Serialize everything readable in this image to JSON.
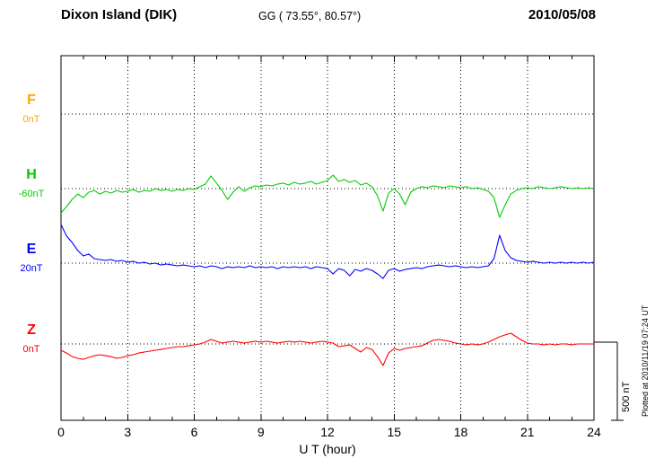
{
  "header": {
    "station": "Dixon Island (DIK)",
    "coords": "GG ( 73.55°,  80.57°)",
    "date": "2010/05/08"
  },
  "components": [
    {
      "letter": "F",
      "unit": "0nT",
      "color": "#ffa500"
    },
    {
      "letter": "H",
      "unit": "-60nT",
      "color": "#00cc00"
    },
    {
      "letter": "E",
      "unit": "20nT",
      "color": "#0000ff"
    },
    {
      "letter": "Z",
      "unit": "0nT",
      "color": "#ff0000"
    }
  ],
  "right_annotations": {
    "scale_label": "500 nT",
    "plotted_at": "Plotted at 2010/11/19 07:24 UT"
  },
  "chart_data": {
    "type": "line",
    "title": "Dixon Island (DIK) magnetogram 2010/05/08",
    "xlabel": "U T (hour)",
    "x_range": [
      0,
      24
    ],
    "x_ticks": [
      0,
      3,
      6,
      9,
      12,
      15,
      18,
      21,
      24
    ],
    "x_start_hours": 0,
    "x_step_hours": 0.25,
    "scale_bar_nT": 500,
    "grid": "dotted",
    "series": [
      {
        "id": "F",
        "label": "F",
        "reference_label": "0nT",
        "reference_nT": 0,
        "color": "#ffa500",
        "offsets_from_reference_nT": []
      },
      {
        "id": "H",
        "label": "H",
        "reference_label": "-60nT",
        "reference_nT": -60,
        "color": "#00cc00",
        "offsets_from_reference_nT": [
          -155,
          -115,
          -69,
          -35,
          -58,
          -23,
          -12,
          -35,
          -17,
          -29,
          -12,
          -23,
          -17,
          -6,
          -23,
          -12,
          -17,
          0,
          -12,
          -6,
          -17,
          -6,
          -12,
          0,
          -6,
          12,
          29,
          81,
          35,
          -12,
          -69,
          -23,
          12,
          -17,
          6,
          17,
          12,
          23,
          17,
          29,
          35,
          23,
          40,
          29,
          35,
          46,
          29,
          40,
          52,
          86,
          46,
          58,
          40,
          52,
          23,
          35,
          12,
          -46,
          -144,
          -29,
          0,
          -35,
          -104,
          -23,
          0,
          12,
          6,
          17,
          12,
          6,
          17,
          12,
          6,
          12,
          0,
          6,
          -6,
          -17,
          -58,
          -184,
          -104,
          -35,
          -12,
          0,
          6,
          0,
          12,
          6,
          0,
          6,
          12,
          6,
          0,
          6,
          0,
          6,
          0
        ]
      },
      {
        "id": "E",
        "label": "E",
        "reference_label": "20nT",
        "reference_nT": 20,
        "color": "#0000ff",
        "offsets_from_reference_nT": [
          247,
          173,
          132,
          81,
          46,
          58,
          29,
          23,
          17,
          23,
          12,
          17,
          6,
          12,
          0,
          6,
          -6,
          0,
          -12,
          -6,
          -12,
          -17,
          -12,
          -17,
          -23,
          -17,
          -29,
          -17,
          -23,
          -35,
          -23,
          -29,
          -23,
          -29,
          -17,
          -29,
          -23,
          -29,
          -23,
          -35,
          -23,
          -29,
          -23,
          -29,
          -23,
          -35,
          -23,
          -29,
          -35,
          -69,
          -35,
          -46,
          -81,
          -40,
          -52,
          -35,
          -46,
          -69,
          -98,
          -46,
          -35,
          -52,
          -40,
          -35,
          -29,
          -35,
          -23,
          -17,
          -12,
          -17,
          -23,
          -17,
          -23,
          -29,
          -23,
          -29,
          -23,
          -17,
          29,
          178,
          81,
          35,
          17,
          12,
          6,
          12,
          6,
          0,
          6,
          0,
          6,
          0,
          6,
          0,
          6,
          0,
          6
        ]
      },
      {
        "id": "Z",
        "label": "Z",
        "reference_label": "0nT",
        "reference_nT": 0,
        "color": "#ff0000",
        "offsets_from_reference_nT": [
          -40,
          -58,
          -81,
          -92,
          -98,
          -86,
          -75,
          -69,
          -75,
          -81,
          -92,
          -86,
          -75,
          -69,
          -58,
          -52,
          -46,
          -40,
          -35,
          -29,
          -23,
          -17,
          -17,
          -12,
          -6,
          0,
          12,
          29,
          17,
          6,
          12,
          17,
          12,
          6,
          12,
          17,
          12,
          17,
          12,
          6,
          12,
          17,
          12,
          17,
          12,
          6,
          12,
          17,
          12,
          6,
          -17,
          -12,
          -6,
          -29,
          -52,
          -23,
          -35,
          -81,
          -138,
          -58,
          -29,
          -40,
          -29,
          -23,
          -17,
          -12,
          6,
          23,
          29,
          23,
          17,
          6,
          0,
          -6,
          0,
          -6,
          0,
          12,
          29,
          46,
          58,
          69,
          46,
          23,
          6,
          0,
          0,
          -6,
          0,
          -6,
          0,
          0,
          -6,
          0,
          0,
          0,
          0
        ]
      }
    ]
  }
}
